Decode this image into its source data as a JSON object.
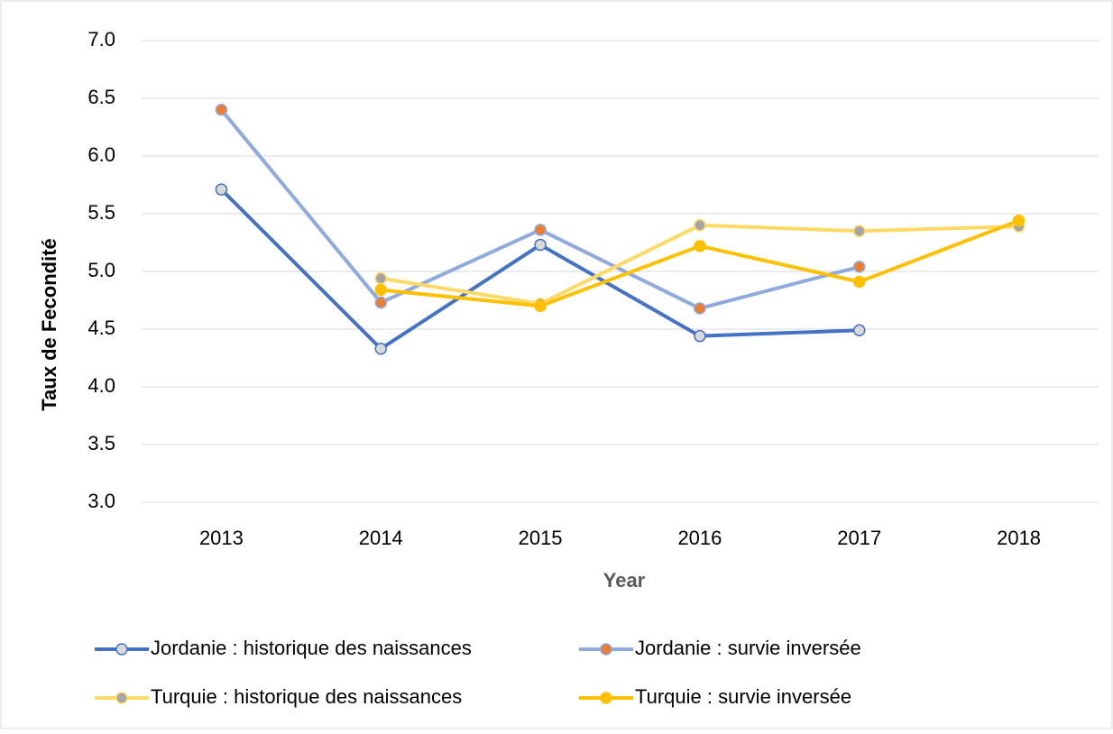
{
  "chart_data": {
    "type": "line",
    "x_label": "Year",
    "y_label": "Taux de Fecondité",
    "categories": [
      "2013",
      "2014",
      "2015",
      "2016",
      "2017",
      "2018"
    ],
    "series": [
      {
        "name": "Jordanie : historique des naissances",
        "color": "#4472c4",
        "marker_color": "#d9d9d9",
        "values": [
          5.71,
          4.33,
          5.23,
          4.44,
          4.49,
          null
        ]
      },
      {
        "name": "Jordanie : survie inversée",
        "color": "#8faadc",
        "marker_color": "#ed7d31",
        "values": [
          6.4,
          4.73,
          5.36,
          4.68,
          5.04,
          null
        ]
      },
      {
        "name": "Turquie : historique des naissances",
        "color": "#ffd966",
        "marker_color": "#a5a5a5",
        "values": [
          null,
          4.94,
          4.72,
          5.4,
          5.35,
          5.39
        ]
      },
      {
        "name": "Turquie : survie inversée",
        "color": "#ffc000",
        "marker_color": "#ffc000",
        "values": [
          null,
          4.84,
          4.7,
          5.22,
          4.91,
          5.44
        ]
      }
    ],
    "ylim": [
      3,
      7
    ],
    "yticks": [
      {
        "value": 3,
        "label": "3.0"
      },
      3.5,
      {
        "value": 4,
        "label": "4.0"
      },
      4.5,
      {
        "value": 5,
        "label": "5.0"
      },
      5.5,
      {
        "value": 6,
        "label": "6.0"
      },
      6.5,
      {
        "value": 7,
        "label": "7.0"
      }
    ],
    "grid": true
  }
}
